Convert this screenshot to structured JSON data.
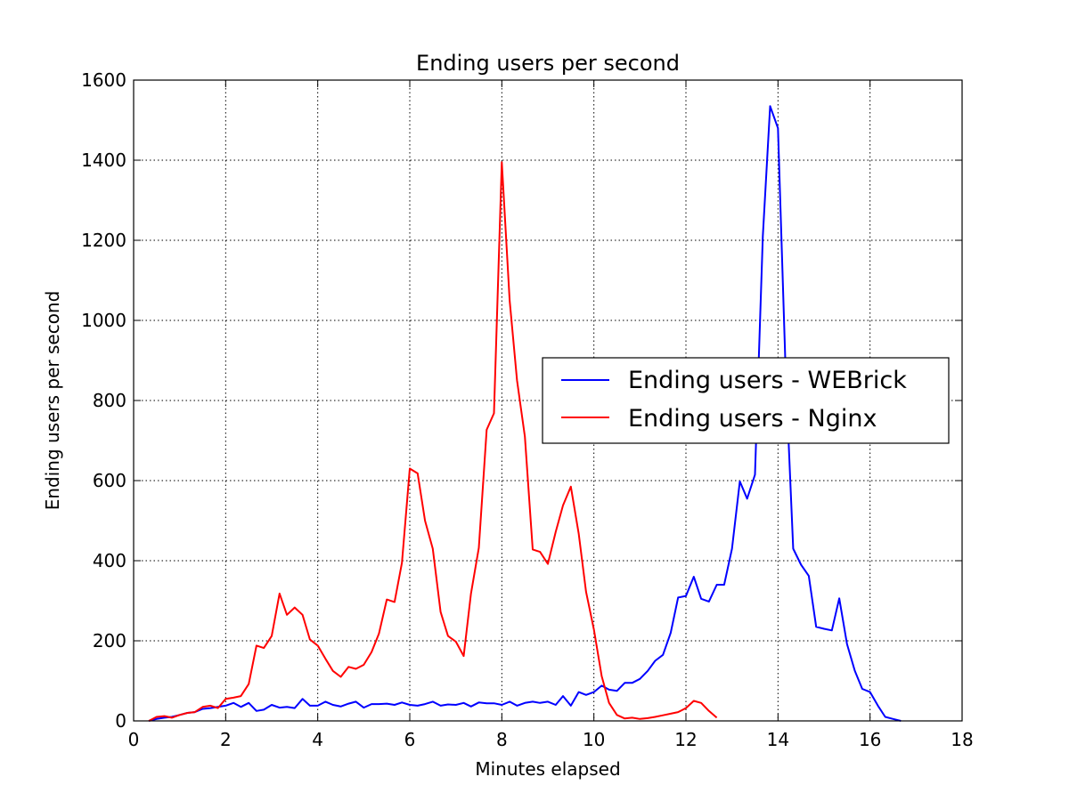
{
  "chart_data": {
    "type": "line",
    "title": "Ending users per second",
    "xlabel": "Minutes elapsed",
    "ylabel": "Ending users per second",
    "xlim": [
      0,
      18
    ],
    "ylim": [
      0,
      1600
    ],
    "xticks": [
      0,
      2,
      4,
      6,
      8,
      10,
      12,
      14,
      16,
      18
    ],
    "yticks": [
      0,
      200,
      400,
      600,
      800,
      1000,
      1200,
      1400,
      1600
    ],
    "grid": true,
    "legend_position": "center-right",
    "series": [
      {
        "name": "Ending users - WEBrick",
        "color": "#0000ff",
        "x": [
          0.33,
          0.5,
          0.67,
          0.83,
          1.0,
          1.17,
          1.33,
          1.5,
          1.67,
          1.83,
          2.0,
          2.17,
          2.33,
          2.5,
          2.67,
          2.83,
          3.0,
          3.17,
          3.33,
          3.5,
          3.67,
          3.83,
          4.0,
          4.17,
          4.33,
          4.5,
          4.67,
          4.83,
          5.0,
          5.17,
          5.33,
          5.5,
          5.67,
          5.83,
          6.0,
          6.17,
          6.33,
          6.5,
          6.67,
          6.83,
          7.0,
          7.17,
          7.33,
          7.5,
          7.67,
          7.83,
          8.0,
          8.17,
          8.33,
          8.5,
          8.67,
          8.83,
          9.0,
          9.17,
          9.33,
          9.5,
          9.67,
          9.83,
          10.0,
          10.17,
          10.33,
          10.5,
          10.67,
          10.83,
          11.0,
          11.17,
          11.33,
          11.5,
          11.67,
          11.83,
          12.0,
          12.17,
          12.33,
          12.5,
          12.67,
          12.83,
          13.0,
          13.17,
          13.33,
          13.5,
          13.67,
          13.83,
          14.0,
          14.17,
          14.33,
          14.5,
          14.67,
          14.83,
          15.0,
          15.17,
          15.33,
          15.5,
          15.67,
          15.83,
          16.0,
          16.17,
          16.33,
          16.5,
          16.67
        ],
        "y": [
          0,
          5,
          8,
          10,
          15,
          20,
          22,
          30,
          32,
          35,
          38,
          45,
          35,
          45,
          25,
          28,
          40,
          33,
          35,
          32,
          55,
          38,
          38,
          48,
          40,
          36,
          43,
          48,
          33,
          42,
          42,
          43,
          40,
          46,
          40,
          38,
          42,
          48,
          38,
          41,
          40,
          45,
          36,
          46,
          44,
          44,
          40,
          48,
          38,
          45,
          48,
          45,
          48,
          40,
          62,
          38,
          72,
          65,
          72,
          88,
          78,
          75,
          95,
          95,
          105,
          125,
          150,
          165,
          220,
          308,
          312,
          360,
          305,
          298,
          340,
          340,
          430,
          598,
          555,
          615,
          1210,
          1535,
          1480,
          860,
          430,
          390,
          362,
          235,
          230,
          226,
          306,
          192,
          125,
          80,
          72,
          38,
          10,
          5,
          0
        ]
      },
      {
        "name": "Ending users - Nginx",
        "color": "#ff0000",
        "x": [
          0.33,
          0.5,
          0.67,
          0.83,
          1.0,
          1.17,
          1.33,
          1.5,
          1.67,
          1.83,
          2.0,
          2.17,
          2.33,
          2.5,
          2.67,
          2.83,
          3.0,
          3.17,
          3.33,
          3.5,
          3.67,
          3.83,
          4.0,
          4.17,
          4.33,
          4.5,
          4.67,
          4.83,
          5.0,
          5.17,
          5.33,
          5.5,
          5.67,
          5.83,
          6.0,
          6.17,
          6.33,
          6.5,
          6.67,
          6.83,
          7.0,
          7.17,
          7.33,
          7.5,
          7.67,
          7.83,
          8.0,
          8.17,
          8.33,
          8.5,
          8.67,
          8.83,
          9.0,
          9.17,
          9.33,
          9.5,
          9.67,
          9.83,
          10.0,
          10.17,
          10.33,
          10.5,
          10.67,
          10.83,
          11.0,
          11.17,
          11.33,
          11.5,
          11.67,
          11.83,
          12.0,
          12.17,
          12.33,
          12.5,
          12.67
        ],
        "y": [
          0,
          10,
          12,
          8,
          15,
          20,
          22,
          35,
          38,
          32,
          55,
          58,
          62,
          92,
          188,
          182,
          212,
          318,
          265,
          283,
          265,
          203,
          188,
          155,
          125,
          110,
          135,
          130,
          140,
          172,
          218,
          303,
          297,
          395,
          630,
          618,
          500,
          430,
          272,
          212,
          198,
          162,
          318,
          432,
          727,
          768,
          1395,
          1050,
          850,
          710,
          428,
          422,
          392,
          472,
          538,
          585,
          468,
          322,
          228,
          112,
          45,
          15,
          6,
          8,
          5,
          7,
          10,
          14,
          18,
          22,
          32,
          50,
          45,
          25,
          8
        ]
      }
    ]
  }
}
